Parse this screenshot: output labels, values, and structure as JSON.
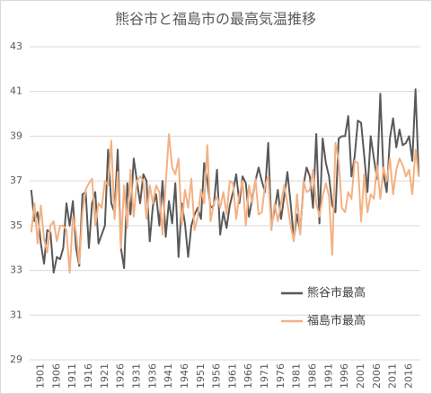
{
  "chart_data": {
    "type": "line",
    "title": "熊谷市と福島市の最高気温推移",
    "categories": [
      null,
      null,
      null,
      "1901",
      null,
      null,
      null,
      null,
      "1906",
      null,
      null,
      null,
      null,
      "1911",
      null,
      null,
      null,
      null,
      "1916",
      null,
      null,
      null,
      null,
      "1921",
      null,
      null,
      null,
      null,
      "1926",
      null,
      null,
      null,
      null,
      "1931",
      null,
      null,
      null,
      null,
      "1936",
      null,
      null,
      null,
      null,
      "1941",
      null,
      null,
      null,
      null,
      "1946",
      null,
      null,
      null,
      null,
      "1951",
      null,
      null,
      null,
      null,
      "1956",
      null,
      null,
      null,
      null,
      "1961",
      null,
      null,
      null,
      null,
      "1966",
      null,
      null,
      null,
      null,
      "1971",
      null,
      null,
      null,
      null,
      "1976",
      null,
      null,
      null,
      null,
      "1981",
      null,
      null,
      null,
      null,
      "1986",
      null,
      null,
      null,
      null,
      "1991",
      null,
      null,
      null,
      null,
      "1996",
      null,
      null,
      null,
      null,
      "2001",
      null,
      null,
      null,
      null,
      "2006",
      null,
      null,
      null,
      null,
      "2011",
      null,
      null,
      null,
      null,
      "2016",
      null,
      null,
      null
    ],
    "series": [
      {
        "name": "熊谷市最高",
        "color": "#595959",
        "values": [
          36.6,
          35.2,
          35.6,
          34.2,
          33.3,
          34.8,
          34.7,
          32.9,
          33.6,
          33.5,
          34.0,
          36.0,
          35.0,
          36.1,
          34.0,
          33.2,
          36.4,
          36.5,
          34.0,
          36.0,
          36.5,
          34.2,
          34.6,
          35.0,
          38.4,
          36.0,
          35.6,
          38.4,
          34.0,
          33.1,
          36.9,
          35.5,
          38.0,
          37.0,
          36.0,
          37.3,
          37.0,
          34.3,
          35.9,
          36.4,
          35.0,
          37.0,
          34.5,
          36.1,
          35.1,
          36.9,
          33.6,
          36.0,
          35.1,
          33.6,
          35.0,
          35.5,
          35.8,
          35.3,
          37.8,
          37.0,
          35.8,
          35.9,
          37.5,
          34.6,
          35.6,
          34.9,
          35.9,
          36.5,
          37.3,
          36.0,
          37.2,
          36.9,
          35.4,
          36.2,
          37.0,
          37.6,
          37.0,
          36.5,
          38.7,
          35.0,
          35.7,
          36.6,
          35.3,
          36.3,
          37.4,
          36.0,
          34.4,
          35.5,
          34.7,
          36.8,
          37.6,
          37.2,
          35.8,
          39.1,
          35.1,
          38.9,
          37.8,
          37.2,
          35.9,
          35.6,
          38.9,
          39.0,
          39.0,
          39.9,
          37.2,
          38.1,
          39.7,
          39.6,
          38.1,
          36.5,
          39.0,
          38.0,
          37.1,
          40.9,
          37.3,
          36.5,
          38.9,
          39.8,
          38.5,
          39.3,
          38.6,
          38.7,
          39.0,
          37.9,
          41.1,
          37.2
        ]
      },
      {
        "name": "福島市最高",
        "color": "#f4b183",
        "values": [
          34.7,
          36.0,
          34.2,
          35.9,
          34.4,
          33.8,
          35.0,
          35.2,
          34.3,
          35.0,
          35.0,
          34.8,
          32.9,
          35.4,
          34.7,
          33.3,
          35.6,
          36.6,
          36.9,
          37.1,
          35.0,
          36.0,
          35.8,
          37.0,
          36.8,
          38.8,
          35.3,
          37.4,
          34.0,
          36.8,
          34.9,
          37.5,
          35.4,
          37.0,
          37.2,
          37.0,
          35.3,
          36.8,
          36.0,
          36.8,
          36.5,
          34.6,
          36.9,
          39.1,
          37.6,
          37.3,
          38.0,
          35.0,
          36.6,
          35.8,
          37.1,
          34.8,
          35.4,
          36.6,
          36.0,
          38.6,
          35.2,
          36.0,
          36.3,
          35.8,
          36.5,
          35.5,
          37.0,
          36.9,
          35.3,
          36.4,
          37.0,
          35.0,
          36.8,
          36.0,
          37.1,
          35.5,
          35.6,
          36.8,
          37.2,
          34.8,
          36.0,
          35.2,
          36.0,
          36.8,
          36.0,
          35.0,
          34.3,
          36.4,
          34.6,
          37.0,
          36.5,
          36.6,
          37.5,
          36.0,
          35.4,
          36.3,
          36.9,
          36.3,
          33.7,
          38.7,
          37.9,
          35.8,
          35.6,
          36.5,
          36.2,
          37.9,
          37.8,
          35.2,
          37.3,
          35.6,
          36.4,
          36.2,
          37.7,
          36.2,
          37.6,
          37.0,
          38.0,
          36.4,
          37.5,
          38.0,
          37.7,
          37.2,
          37.5,
          36.4,
          38.4,
          37.2
        ]
      }
    ],
    "ylim": [
      29,
      43
    ],
    "yticks": [
      29,
      31,
      33,
      35,
      37,
      39,
      41,
      43
    ],
    "grid": true,
    "legend": "right"
  }
}
